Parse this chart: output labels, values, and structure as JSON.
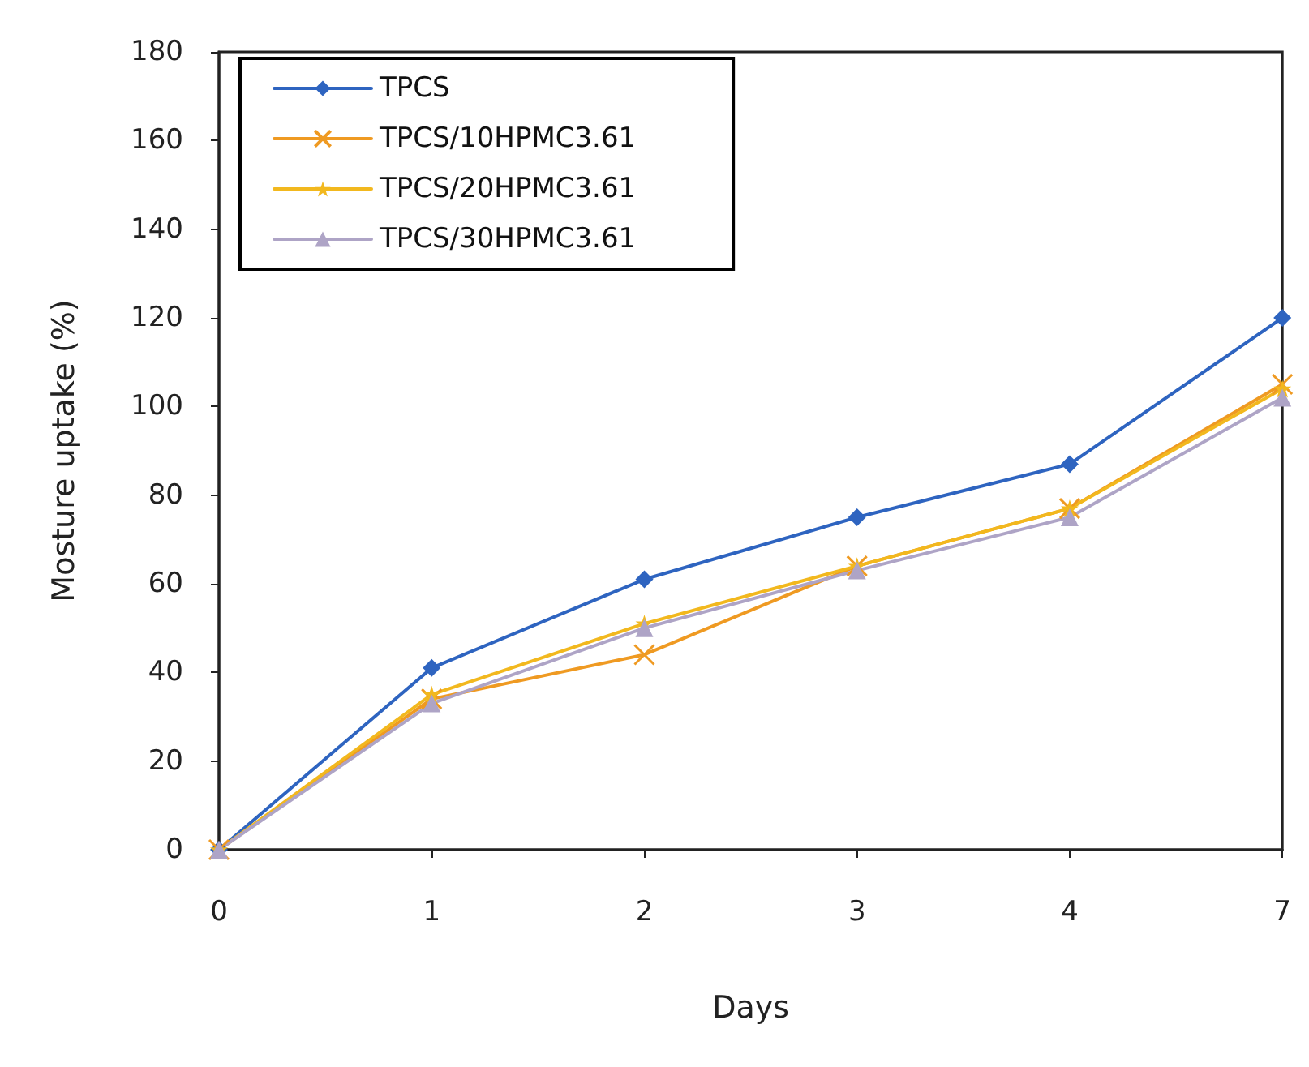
{
  "chart_data": {
    "type": "line",
    "xlabel": "Days",
    "ylabel": "Mosture uptake (%)",
    "categories": [
      "0",
      "1",
      "2",
      "3",
      "4",
      "7"
    ],
    "series": [
      {
        "name": "TPCS",
        "color": "#2e64c0",
        "marker": "diamond",
        "values": [
          0,
          41,
          61,
          75,
          87,
          120
        ]
      },
      {
        "name": "TPCS/10HPMC3.61",
        "color": "#ef9a22",
        "marker": "cross",
        "values": [
          0,
          34,
          44,
          64,
          77,
          105
        ]
      },
      {
        "name": "TPCS/20HPMC3.61",
        "color": "#f2b81e",
        "marker": "star",
        "values": [
          0,
          35,
          51,
          64,
          77,
          104
        ]
      },
      {
        "name": "TPCS/30HPMC3.61",
        "color": "#aea4c6",
        "marker": "triangle",
        "values": [
          0,
          33,
          50,
          63,
          75,
          102
        ]
      }
    ],
    "ylim": [
      0,
      180
    ],
    "yticks": [
      0,
      20,
      40,
      60,
      80,
      100,
      120,
      140,
      160,
      180
    ],
    "grid": false,
    "legend": "top left",
    "line_style": "solid"
  }
}
